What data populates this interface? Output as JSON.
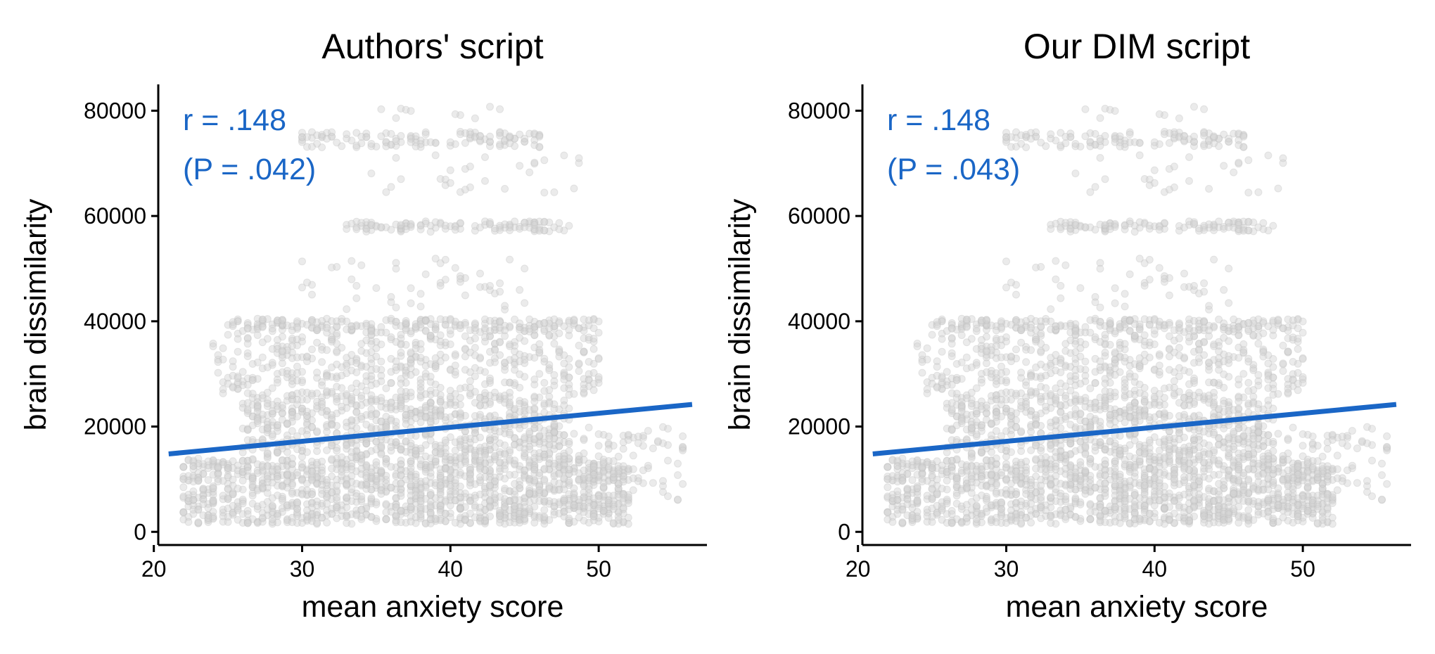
{
  "colors": {
    "points": "#d3d3d3",
    "fit_line": "#1a66c6",
    "annotation": "#1a66c6",
    "axis": "#000000"
  },
  "chart_data": [
    {
      "type": "scatter",
      "title": "Authors' script",
      "xlabel": "mean anxiety score",
      "ylabel": "brain dissimilarity",
      "xlim": [
        20.3,
        57.3
      ],
      "ylim": [
        -2500,
        85000
      ],
      "xticks": [
        20,
        30,
        40,
        50
      ],
      "xtick_labels": [
        "20",
        "30",
        "40",
        "50"
      ],
      "yticks": [
        0,
        20000,
        40000,
        60000,
        80000
      ],
      "ytick_labels": [
        "0",
        "20000",
        "40000",
        "60000",
        "80000"
      ],
      "grid": false,
      "annotation": [
        "r = .148",
        "(P = .042)"
      ],
      "fit_line": {
        "x": [
          21,
          56.3
        ],
        "y": [
          14800,
          24200
        ]
      },
      "points_style": "dense light-gray semi-transparent cloud",
      "clusters": [
        {
          "x": [
            22,
            52
          ],
          "y": [
            1500,
            14000
          ],
          "n": 1300
        },
        {
          "x": [
            26,
            48
          ],
          "y": [
            14000,
            26000
          ],
          "n": 700
        },
        {
          "x": [
            24,
            50
          ],
          "y": [
            26000,
            38000
          ],
          "n": 450
        },
        {
          "x": [
            25,
            50
          ],
          "y": [
            38000,
            40500
          ],
          "n": 220
        },
        {
          "x": [
            30,
            46
          ],
          "y": [
            42000,
            52000
          ],
          "n": 50
        },
        {
          "x": [
            33,
            48
          ],
          "y": [
            57000,
            59000
          ],
          "n": 110
        },
        {
          "x": [
            34,
            49
          ],
          "y": [
            64000,
            72000
          ],
          "n": 30
        },
        {
          "x": [
            30,
            46
          ],
          "y": [
            73000,
            76000
          ],
          "n": 120
        },
        {
          "x": [
            35,
            44
          ],
          "y": [
            77000,
            81000
          ],
          "n": 10
        },
        {
          "x": [
            46,
            56
          ],
          "y": [
            4000,
            20000
          ],
          "n": 120
        }
      ]
    },
    {
      "type": "scatter",
      "title": "Our DIM script",
      "xlabel": "mean anxiety score",
      "ylabel": "brain dissimilarity",
      "xlim": [
        20.3,
        57.3
      ],
      "ylim": [
        -2500,
        85000
      ],
      "xticks": [
        20,
        30,
        40,
        50
      ],
      "xtick_labels": [
        "20",
        "30",
        "40",
        "50"
      ],
      "yticks": [
        0,
        20000,
        40000,
        60000,
        80000
      ],
      "ytick_labels": [
        "0",
        "20000",
        "40000",
        "60000",
        "80000"
      ],
      "grid": false,
      "annotation": [
        "r = .148",
        "(P = .043)"
      ],
      "fit_line": {
        "x": [
          21,
          56.3
        ],
        "y": [
          14800,
          24200
        ]
      },
      "points_style": "dense light-gray semi-transparent cloud",
      "clusters": [
        {
          "x": [
            22,
            52
          ],
          "y": [
            1500,
            14000
          ],
          "n": 1300
        },
        {
          "x": [
            26,
            48
          ],
          "y": [
            14000,
            26000
          ],
          "n": 700
        },
        {
          "x": [
            24,
            50
          ],
          "y": [
            26000,
            38000
          ],
          "n": 450
        },
        {
          "x": [
            25,
            50
          ],
          "y": [
            38000,
            40500
          ],
          "n": 220
        },
        {
          "x": [
            30,
            46
          ],
          "y": [
            42000,
            52000
          ],
          "n": 50
        },
        {
          "x": [
            33,
            48
          ],
          "y": [
            57000,
            59000
          ],
          "n": 110
        },
        {
          "x": [
            34,
            49
          ],
          "y": [
            64000,
            72000
          ],
          "n": 30
        },
        {
          "x": [
            30,
            46
          ],
          "y": [
            73000,
            76000
          ],
          "n": 120
        },
        {
          "x": [
            35,
            44
          ],
          "y": [
            77000,
            81000
          ],
          "n": 10
        },
        {
          "x": [
            46,
            56
          ],
          "y": [
            4000,
            20000
          ],
          "n": 120
        }
      ]
    }
  ]
}
